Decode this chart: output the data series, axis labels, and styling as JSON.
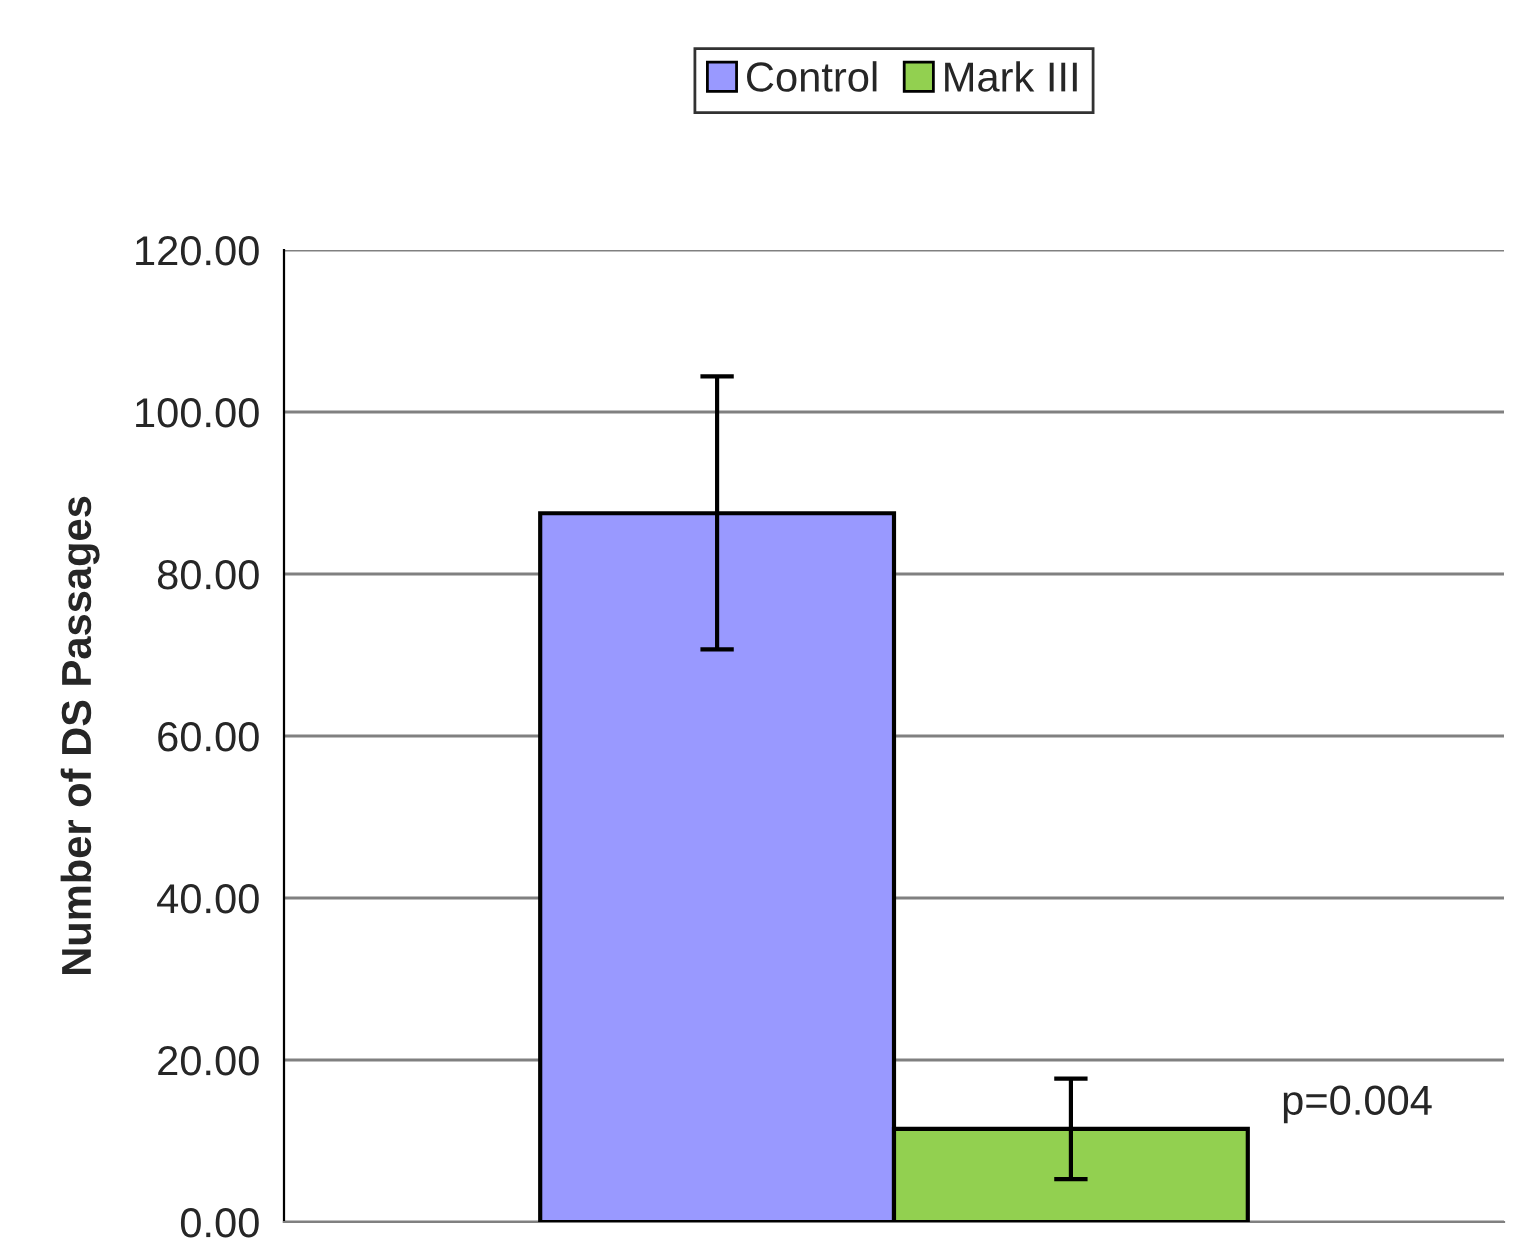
{
  "chart_data": {
    "type": "bar",
    "ylabel": "Number of DS Passages",
    "categories": [
      null
    ],
    "series": [
      {
        "name": "Control",
        "color": "#9999ff",
        "values": [
          87.5
        ],
        "errors": [
          [
            70.7,
            104.4
          ]
        ]
      },
      {
        "name": "Mark III",
        "color": "#92d050",
        "values": [
          11.5
        ],
        "errors": [
          [
            5.3,
            17.7
          ]
        ]
      }
    ],
    "ylim": [
      0,
      120
    ],
    "yticks": [
      {
        "value": 0,
        "label": "0.00"
      },
      {
        "value": 20,
        "label": "20.00"
      },
      {
        "value": 40,
        "label": "40.00"
      },
      {
        "value": 60,
        "label": "60.00"
      },
      {
        "value": 80,
        "label": "80.00"
      },
      {
        "value": 100,
        "label": "100.00"
      },
      {
        "value": 120,
        "label": "120.00"
      }
    ],
    "grid": "y",
    "legend": "top",
    "annotations": [
      "p=0.004"
    ]
  }
}
